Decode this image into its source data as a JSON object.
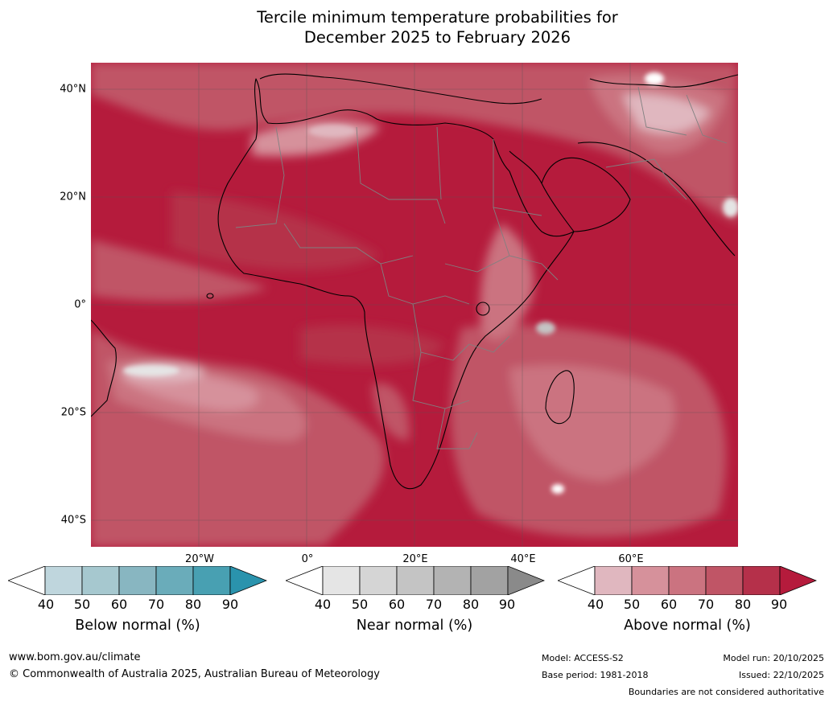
{
  "title_line1": "Tercile minimum temperature probabilities for",
  "title_line2": "December 2025 to February 2026",
  "lat_labels": [
    "40°N",
    "20°N",
    "0°",
    "20°S",
    "40°S"
  ],
  "lon_labels": [
    "20°W",
    "0°",
    "20°E",
    "40°E",
    "60°E"
  ],
  "legend": {
    "ticks": [
      "40",
      "50",
      "60",
      "70",
      "80",
      "90"
    ],
    "below": {
      "label": "Below normal (%)",
      "colors": [
        "#ffffff",
        "#bfd6dd",
        "#a6c8cf",
        "#88b6c1",
        "#6aacba",
        "#48a0b2",
        "#2a93ad"
      ]
    },
    "near": {
      "label": "Near normal (%)",
      "colors": [
        "#ffffff",
        "#e5e5e5",
        "#d5d5d5",
        "#c4c4c4",
        "#b3b3b3",
        "#a2a2a2",
        "#8a8a8a"
      ]
    },
    "above": {
      "label": "Above normal (%)",
      "colors": [
        "#ffffff",
        "#e0b7bf",
        "#d6919b",
        "#cb7380",
        "#c05566",
        "#b5304a",
        "#b51b3c"
      ]
    }
  },
  "footer": {
    "url": "www.bom.gov.au/climate",
    "copyright": "© Commonwealth of Australia 2025, Australian Bureau of Meteorology",
    "model": "Model: ACCESS-S2",
    "base_period": "Base period: 1981-2018",
    "model_run": "Model run: 20/10/2025",
    "issued": "Issued: 22/10/2025",
    "disclaimer": "Boundaries are not considered authoritative"
  }
}
